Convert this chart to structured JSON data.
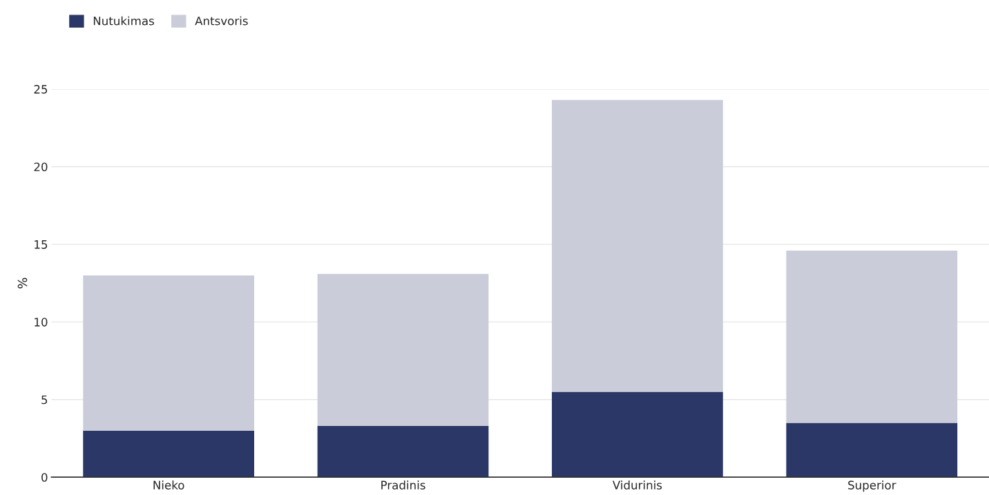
{
  "chart_data": {
    "type": "bar",
    "stacked": true,
    "ylabel": "%",
    "categories": [
      "Nieko",
      "Pradinis",
      "Vidurinis",
      "Superior"
    ],
    "series": [
      {
        "name": "Nutukimas",
        "color": "#2b3766",
        "values": [
          3.0,
          3.3,
          5.5,
          3.5
        ]
      },
      {
        "name": "Antsvoris",
        "color": "#cacdd9",
        "values": [
          10.0,
          9.8,
          18.8,
          11.1
        ]
      }
    ],
    "ylim": [
      0,
      25
    ],
    "yticks": [
      0,
      5,
      10,
      15,
      20,
      25
    ],
    "grid": "y",
    "legend": "top left"
  }
}
